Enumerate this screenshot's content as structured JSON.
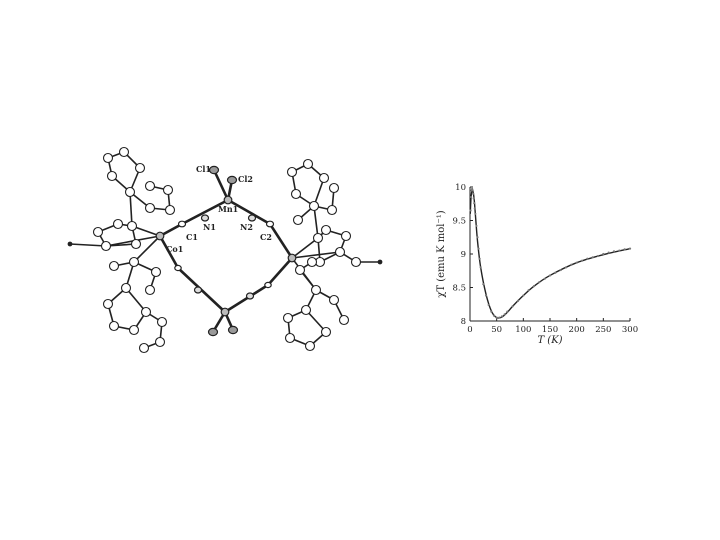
{
  "structure": {
    "atom_labels": {
      "cl1": "Cl1",
      "cl2": "Cl2",
      "mn1": "Mn1",
      "n1": "N1",
      "n2": "N2",
      "c1": "C1",
      "c2": "C2",
      "co1": "Co1"
    }
  },
  "chart_data": {
    "type": "line",
    "title": "",
    "xlabel": "T (K)",
    "ylabel": "χT (emu K mol⁻¹)",
    "xlim": [
      0,
      300
    ],
    "ylim": [
      8,
      10
    ],
    "xticks": [
      "0",
      "50",
      "100",
      "150",
      "200",
      "250",
      "300"
    ],
    "yticks": [
      "8",
      "8.5",
      "9",
      "9.5",
      "10"
    ],
    "grid": false,
    "series": [
      {
        "style": "fit-line",
        "x": [
          0.5,
          2,
          4,
          6,
          8,
          10,
          14,
          20,
          30,
          40,
          50,
          60,
          70,
          80,
          100,
          120,
          150,
          200,
          250,
          300
        ],
        "y": [
          9.6,
          9.85,
          9.95,
          9.92,
          9.8,
          9.6,
          9.2,
          8.8,
          8.4,
          8.15,
          8.05,
          8.06,
          8.13,
          8.22,
          8.38,
          8.52,
          8.68,
          8.87,
          8.99,
          9.08
        ]
      },
      {
        "style": "experimental-points",
        "x": [
          1,
          2,
          3,
          4,
          5,
          6,
          7,
          8,
          9,
          10,
          12,
          14,
          16,
          18,
          20,
          25,
          30,
          35,
          40,
          45,
          50,
          55,
          60,
          65,
          70,
          80,
          90,
          100,
          110,
          120,
          130,
          140,
          150,
          160,
          170,
          180,
          190,
          200,
          210,
          220,
          230,
          240,
          250,
          260,
          270,
          280,
          290,
          300
        ],
        "y": [
          9.65,
          9.85,
          9.95,
          9.97,
          9.95,
          9.9,
          9.83,
          9.76,
          9.68,
          9.6,
          9.42,
          9.25,
          9.08,
          8.93,
          8.8,
          8.55,
          8.38,
          8.24,
          8.14,
          8.08,
          8.05,
          8.05,
          8.07,
          8.1,
          8.14,
          8.22,
          8.3,
          8.38,
          8.46,
          8.52,
          8.58,
          8.63,
          8.68,
          8.72,
          8.76,
          8.8,
          8.84,
          8.87,
          8.9,
          8.93,
          8.95,
          8.97,
          9.0,
          9.02,
          9.04,
          9.05,
          9.07,
          9.08
        ]
      }
    ]
  }
}
